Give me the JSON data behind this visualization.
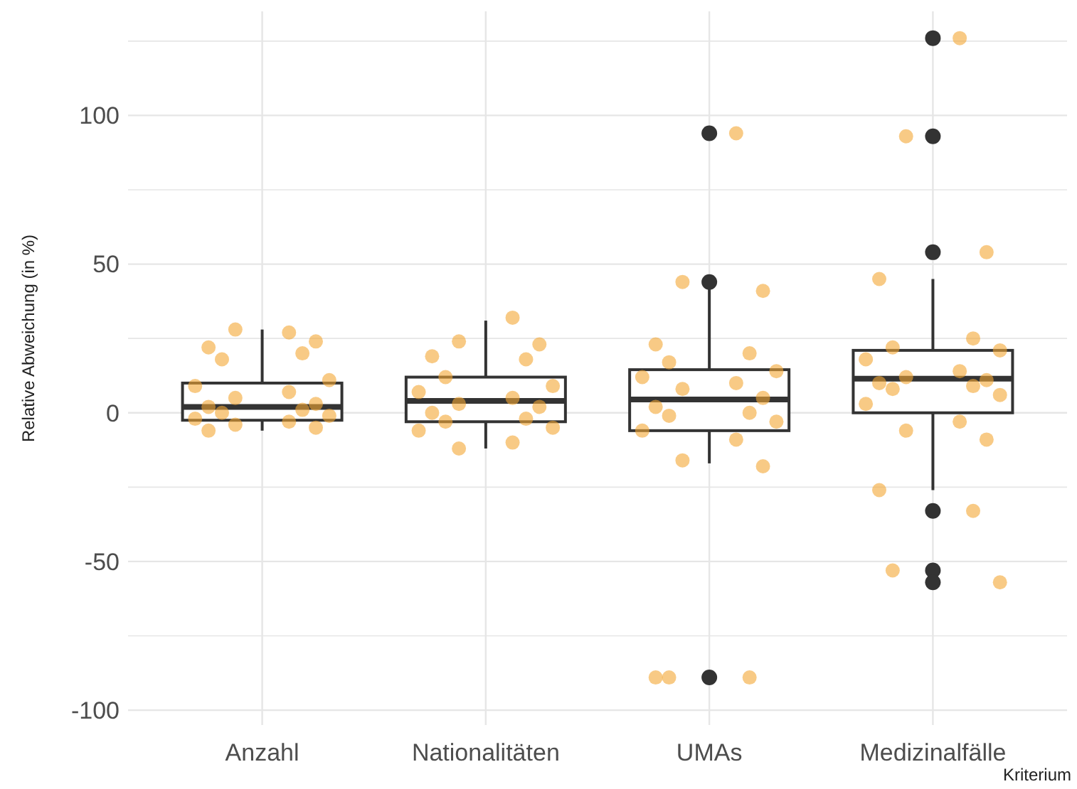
{
  "chart_data": {
    "type": "box",
    "ylabel": "Relative Abweichung (in %)",
    "xlabel": "Kriterium",
    "categories": [
      "Anzahl",
      "Nationalitäten",
      "UMAs",
      "Medizinalfälle"
    ],
    "boxes": [
      {
        "low": -6,
        "q1": -2.5,
        "median": 2,
        "q3": 10,
        "high": 28
      },
      {
        "low": -12,
        "q1": -3,
        "median": 4,
        "q3": 12,
        "high": 31
      },
      {
        "low": -17,
        "q1": -6,
        "median": 4.5,
        "q3": 14.5,
        "high": 43,
        "outliers": [
          94,
          44,
          -89
        ]
      },
      {
        "low": -26,
        "q1": 0,
        "median": 11.5,
        "q3": 21,
        "high": 45,
        "outliers": [
          126,
          93,
          54,
          -33,
          -53,
          -57
        ]
      }
    ],
    "color": "#333333",
    "series": [
      {
        "type": "scatter",
        "color": "#f4a733",
        "x": [
          "Anzahl",
          "Anzahl",
          "Anzahl",
          "Anzahl",
          "Anzahl",
          "Anzahl",
          "Anzahl",
          "Anzahl",
          "Anzahl",
          "Anzahl",
          "Anzahl",
          "Anzahl",
          "Anzahl",
          "Anzahl",
          "Anzahl",
          "Anzahl",
          "Anzahl",
          "Anzahl",
          "Anzahl",
          "Anzahl",
          "Nationalitäten",
          "Nationalitäten",
          "Nationalitäten",
          "Nationalitäten",
          "Nationalitäten",
          "Nationalitäten",
          "Nationalitäten",
          "Nationalitäten",
          "Nationalitäten",
          "Nationalitäten",
          "Nationalitäten",
          "Nationalitäten",
          "Nationalitäten",
          "Nationalitäten",
          "Nationalitäten",
          "Nationalitäten",
          "Nationalitäten",
          "Nationalitäten",
          "UMAs",
          "UMAs",
          "UMAs",
          "UMAs",
          "UMAs",
          "UMAs",
          "UMAs",
          "UMAs",
          "UMAs",
          "UMAs",
          "UMAs",
          "UMAs",
          "UMAs",
          "UMAs",
          "UMAs",
          "UMAs",
          "UMAs",
          "UMAs",
          "UMAs",
          "UMAs",
          "UMAs",
          "UMAs",
          "Medizinalfälle",
          "Medizinalfälle",
          "Medizinalfälle",
          "Medizinalfälle",
          "Medizinalfälle",
          "Medizinalfälle",
          "Medizinalfälle",
          "Medizinalfälle",
          "Medizinalfälle",
          "Medizinalfälle",
          "Medizinalfälle",
          "Medizinalfälle",
          "Medizinalfälle",
          "Medizinalfälle",
          "Medizinalfälle",
          "Medizinalfälle",
          "Medizinalfälle",
          "Medizinalfälle",
          "Medizinalfälle",
          "Medizinalfälle",
          "Medizinalfälle",
          "Medizinalfälle",
          "Medizinalfälle"
        ],
        "values": [
          27,
          28,
          24,
          22,
          20,
          18,
          11,
          9,
          7,
          5,
          3,
          2,
          1,
          0,
          -1,
          -2,
          -3,
          -4,
          -5,
          -6,
          32,
          24,
          23,
          19,
          18,
          12,
          9,
          7,
          5,
          3,
          2,
          0,
          -2,
          -3,
          -5,
          -6,
          -10,
          -12,
          94,
          44,
          41,
          23,
          20,
          17,
          14,
          12,
          10,
          8,
          5,
          2,
          0,
          -1,
          -3,
          -6,
          -9,
          -16,
          -18,
          -89,
          -89,
          -89,
          126,
          93,
          54,
          45,
          25,
          22,
          21,
          18,
          14,
          12,
          11,
          10,
          9,
          8,
          6,
          3,
          -3,
          -6,
          -9,
          -26,
          -33,
          -53,
          -57
        ]
      }
    ],
    "ylim": [
      -105,
      135
    ],
    "yticks": [
      -100,
      {
        "value": -75,
        "label": null
      },
      -50,
      {
        "value": -25,
        "label": null
      },
      0,
      {
        "value": 25,
        "label": null
      },
      50,
      {
        "value": 75,
        "label": null
      },
      100,
      {
        "value": 125,
        "label": null
      }
    ],
    "grid": true,
    "marker": "circle"
  }
}
